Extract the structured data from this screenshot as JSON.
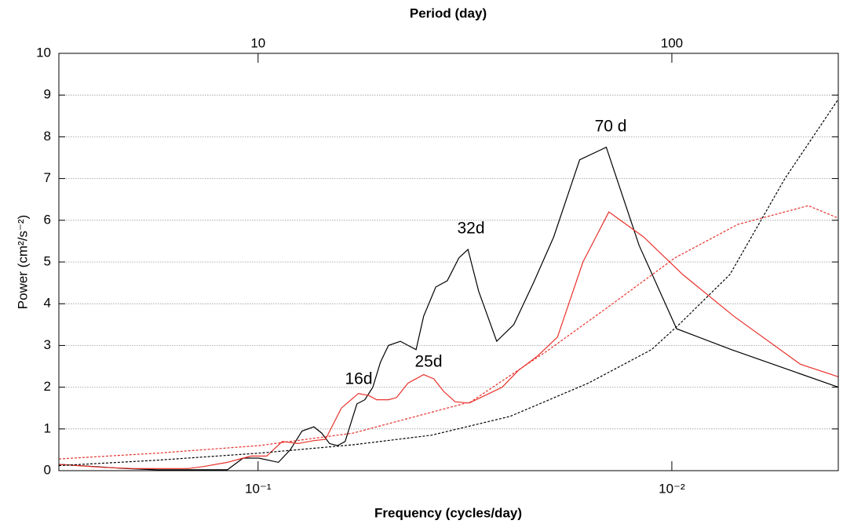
{
  "chart_data": {
    "type": "line",
    "xlabel": "Frequency (cycles/day)",
    "ylabel": "Power (cm²/s⁻²)",
    "x2label": "Period (day)",
    "xscale": "log",
    "xlim": [
      0.303,
      0.00396
    ],
    "xticks": [
      {
        "value": 0.1,
        "label": "10⁻¹"
      },
      {
        "value": 0.01,
        "label": "10⁻²"
      }
    ],
    "x2lim": [
      3.3,
      252.5
    ],
    "x2ticks": [
      10,
      100
    ],
    "ylim": [
      0,
      10
    ],
    "yticks": [
      0,
      1,
      2,
      3,
      4,
      5,
      6,
      7,
      8,
      9,
      10
    ],
    "grid": true,
    "annotations": [
      "70 d",
      "32d",
      "25d",
      "16d"
    ],
    "series": [
      {
        "color": "#000000",
        "dashed": false,
        "x": [
          0.303,
          0.249,
          0.2093,
          0.1757,
          0.1186,
          0.1087,
          0.0996,
          0.0893,
          0.0836,
          0.0783,
          0.0733,
          0.0702,
          0.0672,
          0.0643,
          0.0616,
          0.0577,
          0.0552,
          0.0528,
          0.0506,
          0.0484,
          0.0453,
          0.0434,
          0.0415,
          0.0398,
          0.0372,
          0.0349,
          0.0327,
          0.0311,
          0.0293,
          0.0265,
          0.0241,
          0.0216,
          0.0193,
          0.0167,
          0.0144,
          0.012,
          0.00974,
          0.00718,
          0.00396
        ],
        "values": [
          0.15,
          0.1,
          0.05,
          0.02,
          0.02,
          0.3,
          0.3,
          0.2,
          0.5,
          0.95,
          1.05,
          0.9,
          0.65,
          0.6,
          0.7,
          1.6,
          1.7,
          2.0,
          2.6,
          3.0,
          3.1,
          3.0,
          2.9,
          3.7,
          4.4,
          4.55,
          5.1,
          5.3,
          4.3,
          3.1,
          3.5,
          4.5,
          5.6,
          7.45,
          7.75,
          5.4,
          3.4,
          2.9,
          2.0
        ]
      },
      {
        "color": "#e8302a",
        "dashed": false,
        "x": [
          0.303,
          0.272,
          0.2385,
          0.2003,
          0.1757,
          0.1475,
          0.1352,
          0.1186,
          0.1087,
          0.104,
          0.0953,
          0.0874,
          0.08,
          0.0733,
          0.0687,
          0.0629,
          0.0572,
          0.054,
          0.0517,
          0.0484,
          0.0463,
          0.0434,
          0.0398,
          0.0376,
          0.0356,
          0.0334,
          0.0309,
          0.029,
          0.0257,
          0.0235,
          0.0211,
          0.0189,
          0.0164,
          0.0142,
          0.0117,
          0.00941,
          0.00708,
          0.00489,
          0.00396
        ],
        "values": [
          0.15,
          0.12,
          0.08,
          0.05,
          0.05,
          0.05,
          0.1,
          0.2,
          0.3,
          0.35,
          0.35,
          0.7,
          0.65,
          0.72,
          0.75,
          1.5,
          1.85,
          1.8,
          1.7,
          1.7,
          1.75,
          2.1,
          2.3,
          2.2,
          1.9,
          1.65,
          1.62,
          1.75,
          2.0,
          2.4,
          2.75,
          3.2,
          5.0,
          6.2,
          5.6,
          4.7,
          3.7,
          2.55,
          2.25
        ]
      },
      {
        "color": "#e8302a",
        "dashed": true,
        "x": [
          0.303,
          0.1757,
          0.0996,
          0.0589,
          0.0306,
          0.0198,
          0.0139,
          0.00983,
          0.00693,
          0.00468,
          0.00396
        ],
        "values": [
          0.28,
          0.42,
          0.6,
          0.9,
          1.65,
          2.9,
          4.0,
          5.1,
          5.9,
          6.35,
          6.05
        ]
      },
      {
        "color": "#000000",
        "dashed": true,
        "x": [
          0.303,
          0.1757,
          0.0996,
          0.0589,
          0.0381,
          0.0246,
          0.0159,
          0.0112,
          0.00961,
          0.00724,
          0.00533,
          0.00396
        ],
        "values": [
          0.12,
          0.25,
          0.42,
          0.62,
          0.85,
          1.3,
          2.1,
          2.9,
          3.5,
          4.7,
          7.0,
          8.9
        ]
      }
    ]
  }
}
